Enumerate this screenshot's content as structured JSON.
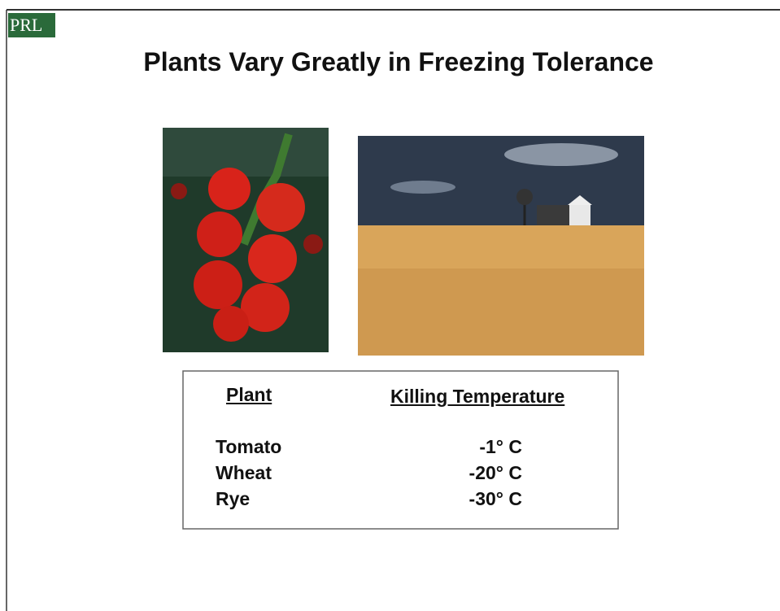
{
  "logo": "PRL",
  "title": "Plants Vary Greatly in Freezing Tolerance",
  "table": {
    "header": [
      "Plant",
      "Killing Temperature"
    ],
    "rows": [
      [
        "Tomato",
        "-1° C"
      ],
      [
        "Wheat",
        "-20° C"
      ],
      [
        "Rye",
        "-30° C"
      ]
    ]
  }
}
